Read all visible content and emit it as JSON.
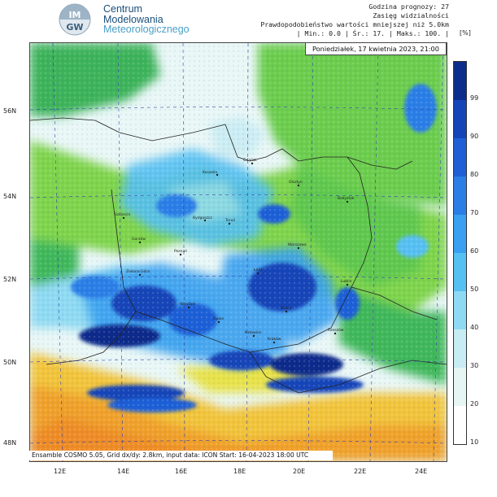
{
  "header": {
    "org_line1": "Centrum",
    "org_line2": "Modelowania",
    "org_line3": "Meteorologicznego",
    "logo_text_top": "IM",
    "logo_text_bottom": "GW",
    "forecast_hour": "Godzina prognozy: 27",
    "product": "Zasięg widzialności",
    "probability": "Prawdopodobieństwo wartości mniejszej niż 5.0km",
    "stats": "| Min.:   0.0 | Śr.:   17. | Maks.:  100. |",
    "unit": "[%]"
  },
  "map": {
    "valid_time": "Poniedziałek, 17 kwietnia 2023, 21:00",
    "footer": "Ensamble COSMO 5.05, Grid dx/dy: 2.8km, input data: ICON Start: 16-04-2023 18:00 UTC",
    "lat_labels": [
      "56N",
      "54N",
      "52N",
      "50N",
      "48N"
    ],
    "lon_labels": [
      "12E",
      "14E",
      "16E",
      "18E",
      "20E",
      "22E",
      "24E"
    ],
    "cities": [
      "Gdańsk",
      "Koszalin",
      "Olsztyn",
      "Szczecin",
      "Bydgoszcz",
      "Toruń",
      "Białystok",
      "Gorzów",
      "Poznań",
      "Warszawa",
      "Zielona Góra",
      "Łódź",
      "Lublin",
      "Wrocław",
      "Opole",
      "Kielce",
      "Katowice",
      "Rzeszów",
      "Kraków"
    ]
  },
  "legend": {
    "labels": [
      "99",
      "90",
      "80",
      "70",
      "60",
      "50",
      "40",
      "30",
      "20",
      "10"
    ],
    "colors": [
      "#0b2c8a",
      "#1444b8",
      "#1f5fd6",
      "#2b7ee6",
      "#3aa0ef",
      "#57c0f2",
      "#8fdaf2",
      "#c8ecf3",
      "#e6f6f2",
      "#ffffff"
    ]
  }
}
